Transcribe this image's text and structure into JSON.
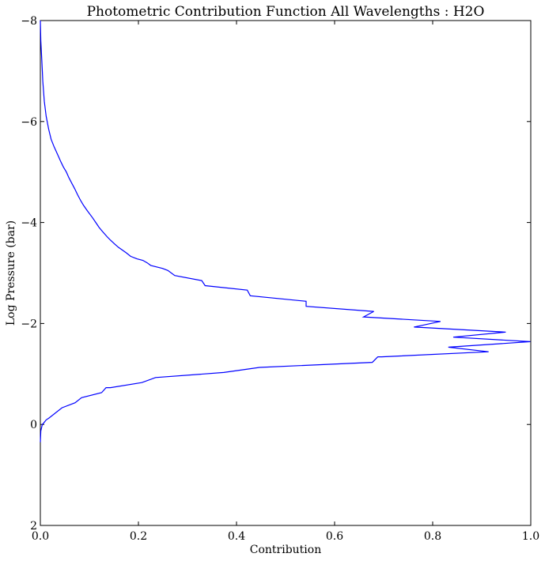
{
  "chart_data": {
    "type": "line",
    "title": "Photometric Contribution Function All Wavelengths : H2O",
    "xlabel": "Contribution",
    "ylabel": "Log Pressure (bar)",
    "xlim": [
      0.0,
      1.0
    ],
    "ylim": [
      2,
      -8
    ],
    "y_inverted": true,
    "grid": false,
    "line_color": "#0000ff",
    "xticks": [
      0.0,
      0.2,
      0.4,
      0.6,
      0.8,
      1.0
    ],
    "xtick_labels": [
      "0.0",
      "0.2",
      "0.4",
      "0.6",
      "0.8",
      "1.0"
    ],
    "yticks": [
      -8,
      -6,
      -4,
      -2,
      0,
      2
    ],
    "ytick_labels": [
      "−8",
      "−6",
      "−4",
      "−2",
      "0",
      "2"
    ],
    "series": [
      {
        "x": [
          0.0,
          0.001,
          0.003,
          0.005,
          0.008,
          0.012,
          0.017,
          0.022,
          0.028,
          0.035,
          0.041,
          0.047,
          0.053,
          0.058,
          0.064,
          0.07,
          0.076,
          0.082,
          0.088,
          0.096,
          0.106,
          0.113,
          0.12,
          0.127,
          0.136,
          0.143,
          0.152,
          0.159,
          0.165,
          0.175,
          0.184,
          0.197,
          0.209,
          0.218,
          0.225,
          0.249,
          0.26,
          0.274,
          0.329,
          0.336,
          0.422,
          0.428,
          0.542,
          0.542,
          0.679,
          0.68,
          0.659,
          0.659,
          0.816,
          0.816,
          0.762,
          0.762,
          0.949,
          0.949,
          0.842,
          0.842,
          0.999,
          0.999,
          0.832,
          0.832,
          0.914,
          0.914,
          0.696,
          0.688,
          0.677,
          0.447,
          0.374,
          0.235,
          0.207,
          0.143,
          0.134,
          0.125,
          0.084,
          0.071,
          0.044,
          0.018,
          0.012,
          0.007,
          0.004,
          0.001,
          0.0
        ],
        "y": [
          -8.0,
          -7.6,
          -7.2,
          -6.8,
          -6.4,
          -6.1,
          -5.85,
          -5.65,
          -5.5,
          -5.35,
          -5.22,
          -5.1,
          -5.0,
          -4.89,
          -4.78,
          -4.67,
          -4.55,
          -4.44,
          -4.34,
          -4.23,
          -4.1,
          -4.0,
          -3.9,
          -3.82,
          -3.72,
          -3.65,
          -3.57,
          -3.51,
          -3.47,
          -3.4,
          -3.33,
          -3.28,
          -3.25,
          -3.2,
          -3.15,
          -3.09,
          -3.05,
          -2.95,
          -2.85,
          -2.75,
          -2.66,
          -2.55,
          -2.44,
          -2.34,
          -2.24,
          -2.24,
          -2.13,
          -2.13,
          -2.04,
          -2.04,
          -1.93,
          -1.93,
          -1.83,
          -1.83,
          -1.73,
          -1.73,
          -1.64,
          -1.64,
          -1.53,
          -1.53,
          -1.44,
          -1.44,
          -1.34,
          -1.34,
          -1.23,
          -1.13,
          -1.03,
          -0.93,
          -0.83,
          -0.73,
          -0.73,
          -0.63,
          -0.53,
          -0.43,
          -0.33,
          -0.13,
          -0.09,
          -0.03,
          0.0,
          0.13,
          0.35
        ]
      }
    ]
  }
}
